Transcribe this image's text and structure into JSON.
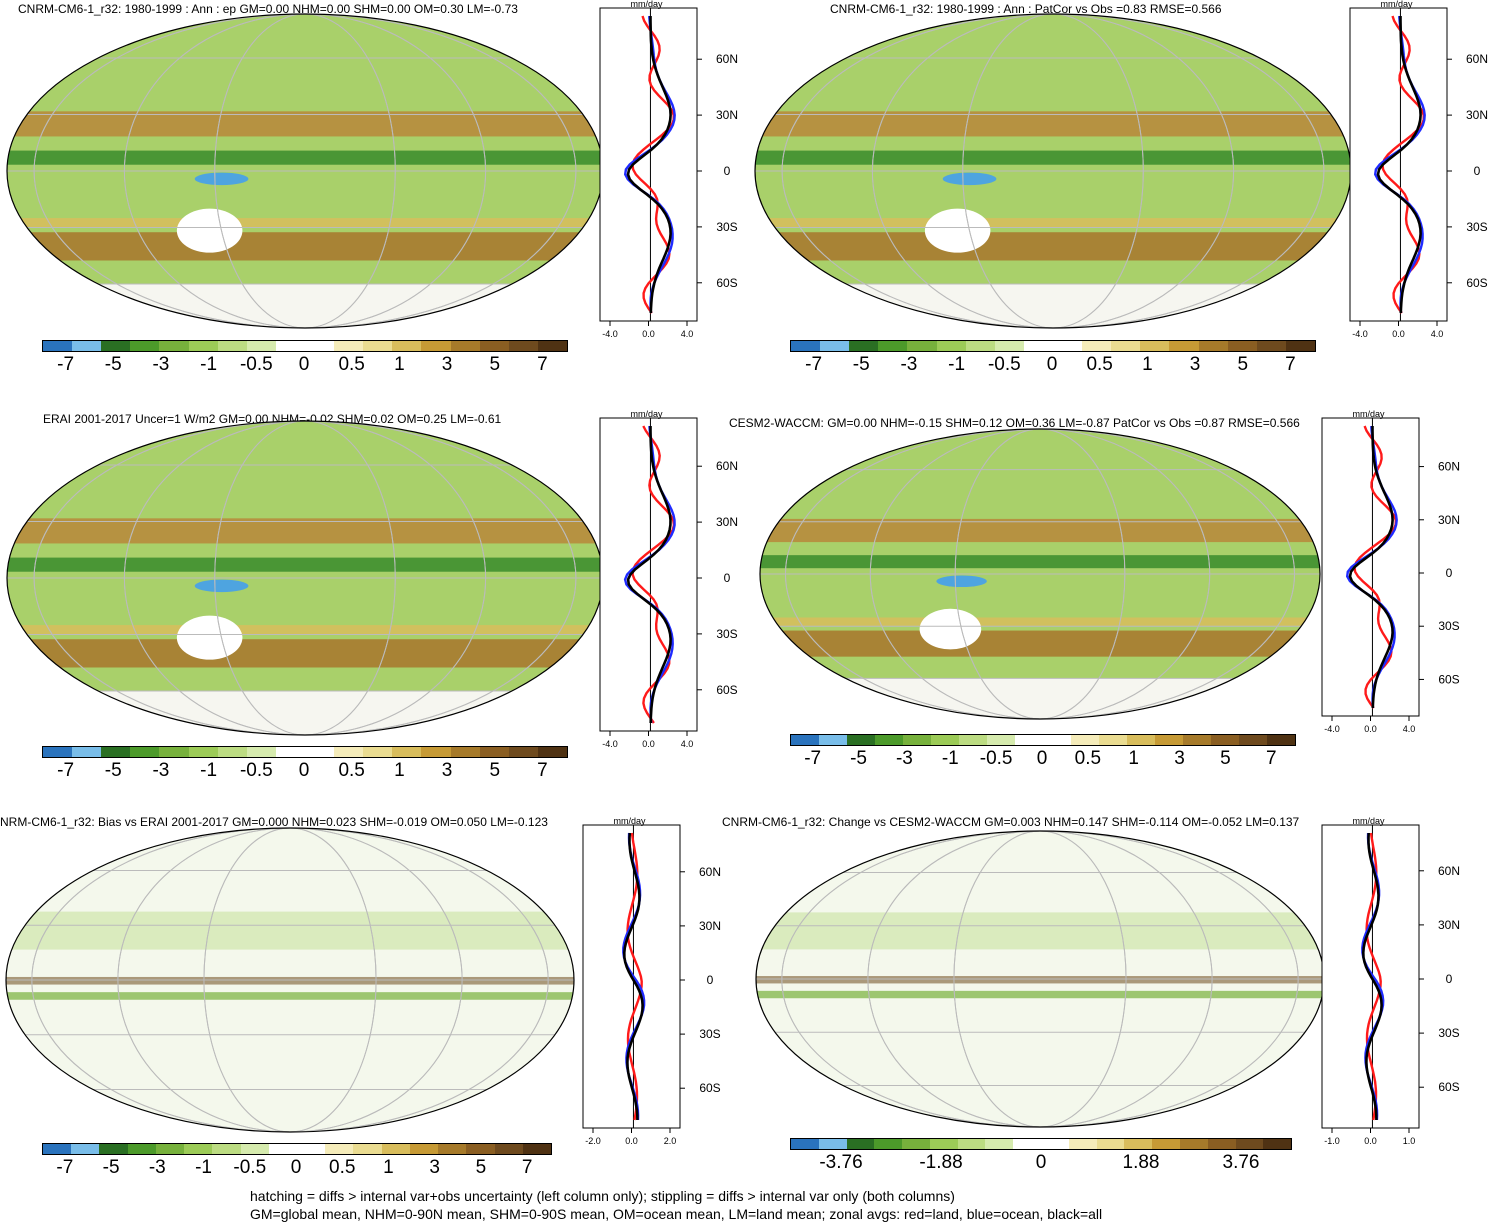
{
  "colors": {
    "ramp_main": [
      "#2a73bd",
      "#79bde9",
      "#2a6f23",
      "#4c9a2a",
      "#77b13c",
      "#9ccb57",
      "#bcdc82",
      "#d6ebae",
      "#ffffff",
      "#ffffff",
      "#f5ecba",
      "#eadc91",
      "#d8bd5c",
      "#c69a35",
      "#a67a2a",
      "#8a5e22",
      "#6e4a1e",
      "#4f3213"
    ],
    "zonal_land": "#ff1a1a",
    "zonal_ocean": "#1f2bff",
    "zonal_all": "#000000"
  },
  "panels": [
    {
      "id": "p1",
      "title": "CNRM-CM6-1_r32: 1980-1999 : Ann : ep GM=0.00 NHM=0.00 SHM=0.00 OM=0.30 LM=-0.73",
      "unit": "mm/day",
      "lat_labels": [
        "60N",
        "30N",
        "0",
        "30S",
        "60S"
      ],
      "x_ticks": [
        "-4.0",
        "0.0",
        "4.0"
      ],
      "cb_labels": [
        "-7",
        "-5",
        "-3",
        "-1",
        "-0.5",
        "0",
        "0.5",
        "1",
        "3",
        "5",
        "7"
      ]
    },
    {
      "id": "p2",
      "title": "CNRM-CM6-1_r32: 1980-1999 : Ann : PatCor vs Obs =0.83 RMSE=0.566",
      "unit": "mm/day",
      "lat_labels": [
        "60N",
        "30N",
        "0",
        "30S",
        "60S"
      ],
      "x_ticks": [
        "-4.0",
        "0.0",
        "4.0"
      ],
      "cb_labels": [
        "-7",
        "-5",
        "-3",
        "-1",
        "-0.5",
        "0",
        "0.5",
        "1",
        "3",
        "5",
        "7"
      ]
    },
    {
      "id": "p3",
      "title": "ERAI 2001-2017 Uncer=1 W/m2 GM=0.00 NHM=-0.02 SHM=0.02 OM=0.25 LM=-0.61",
      "unit": "mm/day",
      "lat_labels": [
        "60N",
        "30N",
        "0",
        "30S",
        "60S"
      ],
      "x_ticks": [
        "-4.0",
        "0.0",
        "4.0"
      ],
      "cb_labels": [
        "-7",
        "-5",
        "-3",
        "-1",
        "-0.5",
        "0",
        "0.5",
        "1",
        "3",
        "5",
        "7"
      ]
    },
    {
      "id": "p4",
      "title": "CESM2-WACCM: GM=0.00 NHM=-0.15 SHM=0.12 OM=0.36 LM=-0.87 PatCor vs Obs =0.87 RMSE=0.566",
      "unit": "mm/day",
      "lat_labels": [
        "60N",
        "30N",
        "0",
        "30S",
        "60S"
      ],
      "x_ticks": [
        "-4.0",
        "0.0",
        "4.0"
      ],
      "cb_labels": [
        "-7",
        "-5",
        "-3",
        "-1",
        "-0.5",
        "0",
        "0.5",
        "1",
        "3",
        "5",
        "7"
      ]
    },
    {
      "id": "p5",
      "title": "NRM-CM6-1_r32: Bias vs ERAI 2001-2017 GM=0.000 NHM=0.023 SHM=-0.019 OM=0.050 LM=-0.123",
      "unit": "mm/day",
      "lat_labels": [
        "60N",
        "30N",
        "0",
        "30S",
        "60S"
      ],
      "x_ticks": [
        "-2.0",
        "0.0",
        "2.0"
      ],
      "cb_labels": [
        "-7",
        "-5",
        "-3",
        "-1",
        "-0.5",
        "0",
        "0.5",
        "1",
        "3",
        "5",
        "7"
      ]
    },
    {
      "id": "p6",
      "title": "CNRM-CM6-1_r32: Change vs CESM2-WACCM GM=0.003 NHM=0.147 SHM=-0.114 OM=-0.052 LM=0.137",
      "unit": "mm/day",
      "lat_labels": [
        "60N",
        "30N",
        "0",
        "30S",
        "60S"
      ],
      "x_ticks": [
        "-1.0",
        "0.0",
        "1.0"
      ],
      "cb_labels": [
        "-3.76",
        "-1.88",
        "0",
        "1.88",
        "3.76"
      ]
    }
  ],
  "footer": {
    "line1": "hatching = diffs > internal var+obs uncertainty (left column only); stippling = diffs > internal var only (both columns)",
    "line2": "GM=global mean, NHM=0-90N mean, SHM=0-90S mean, OM=ocean mean, LM=land mean; zonal avgs: red=land, blue=ocean, black=all"
  }
}
